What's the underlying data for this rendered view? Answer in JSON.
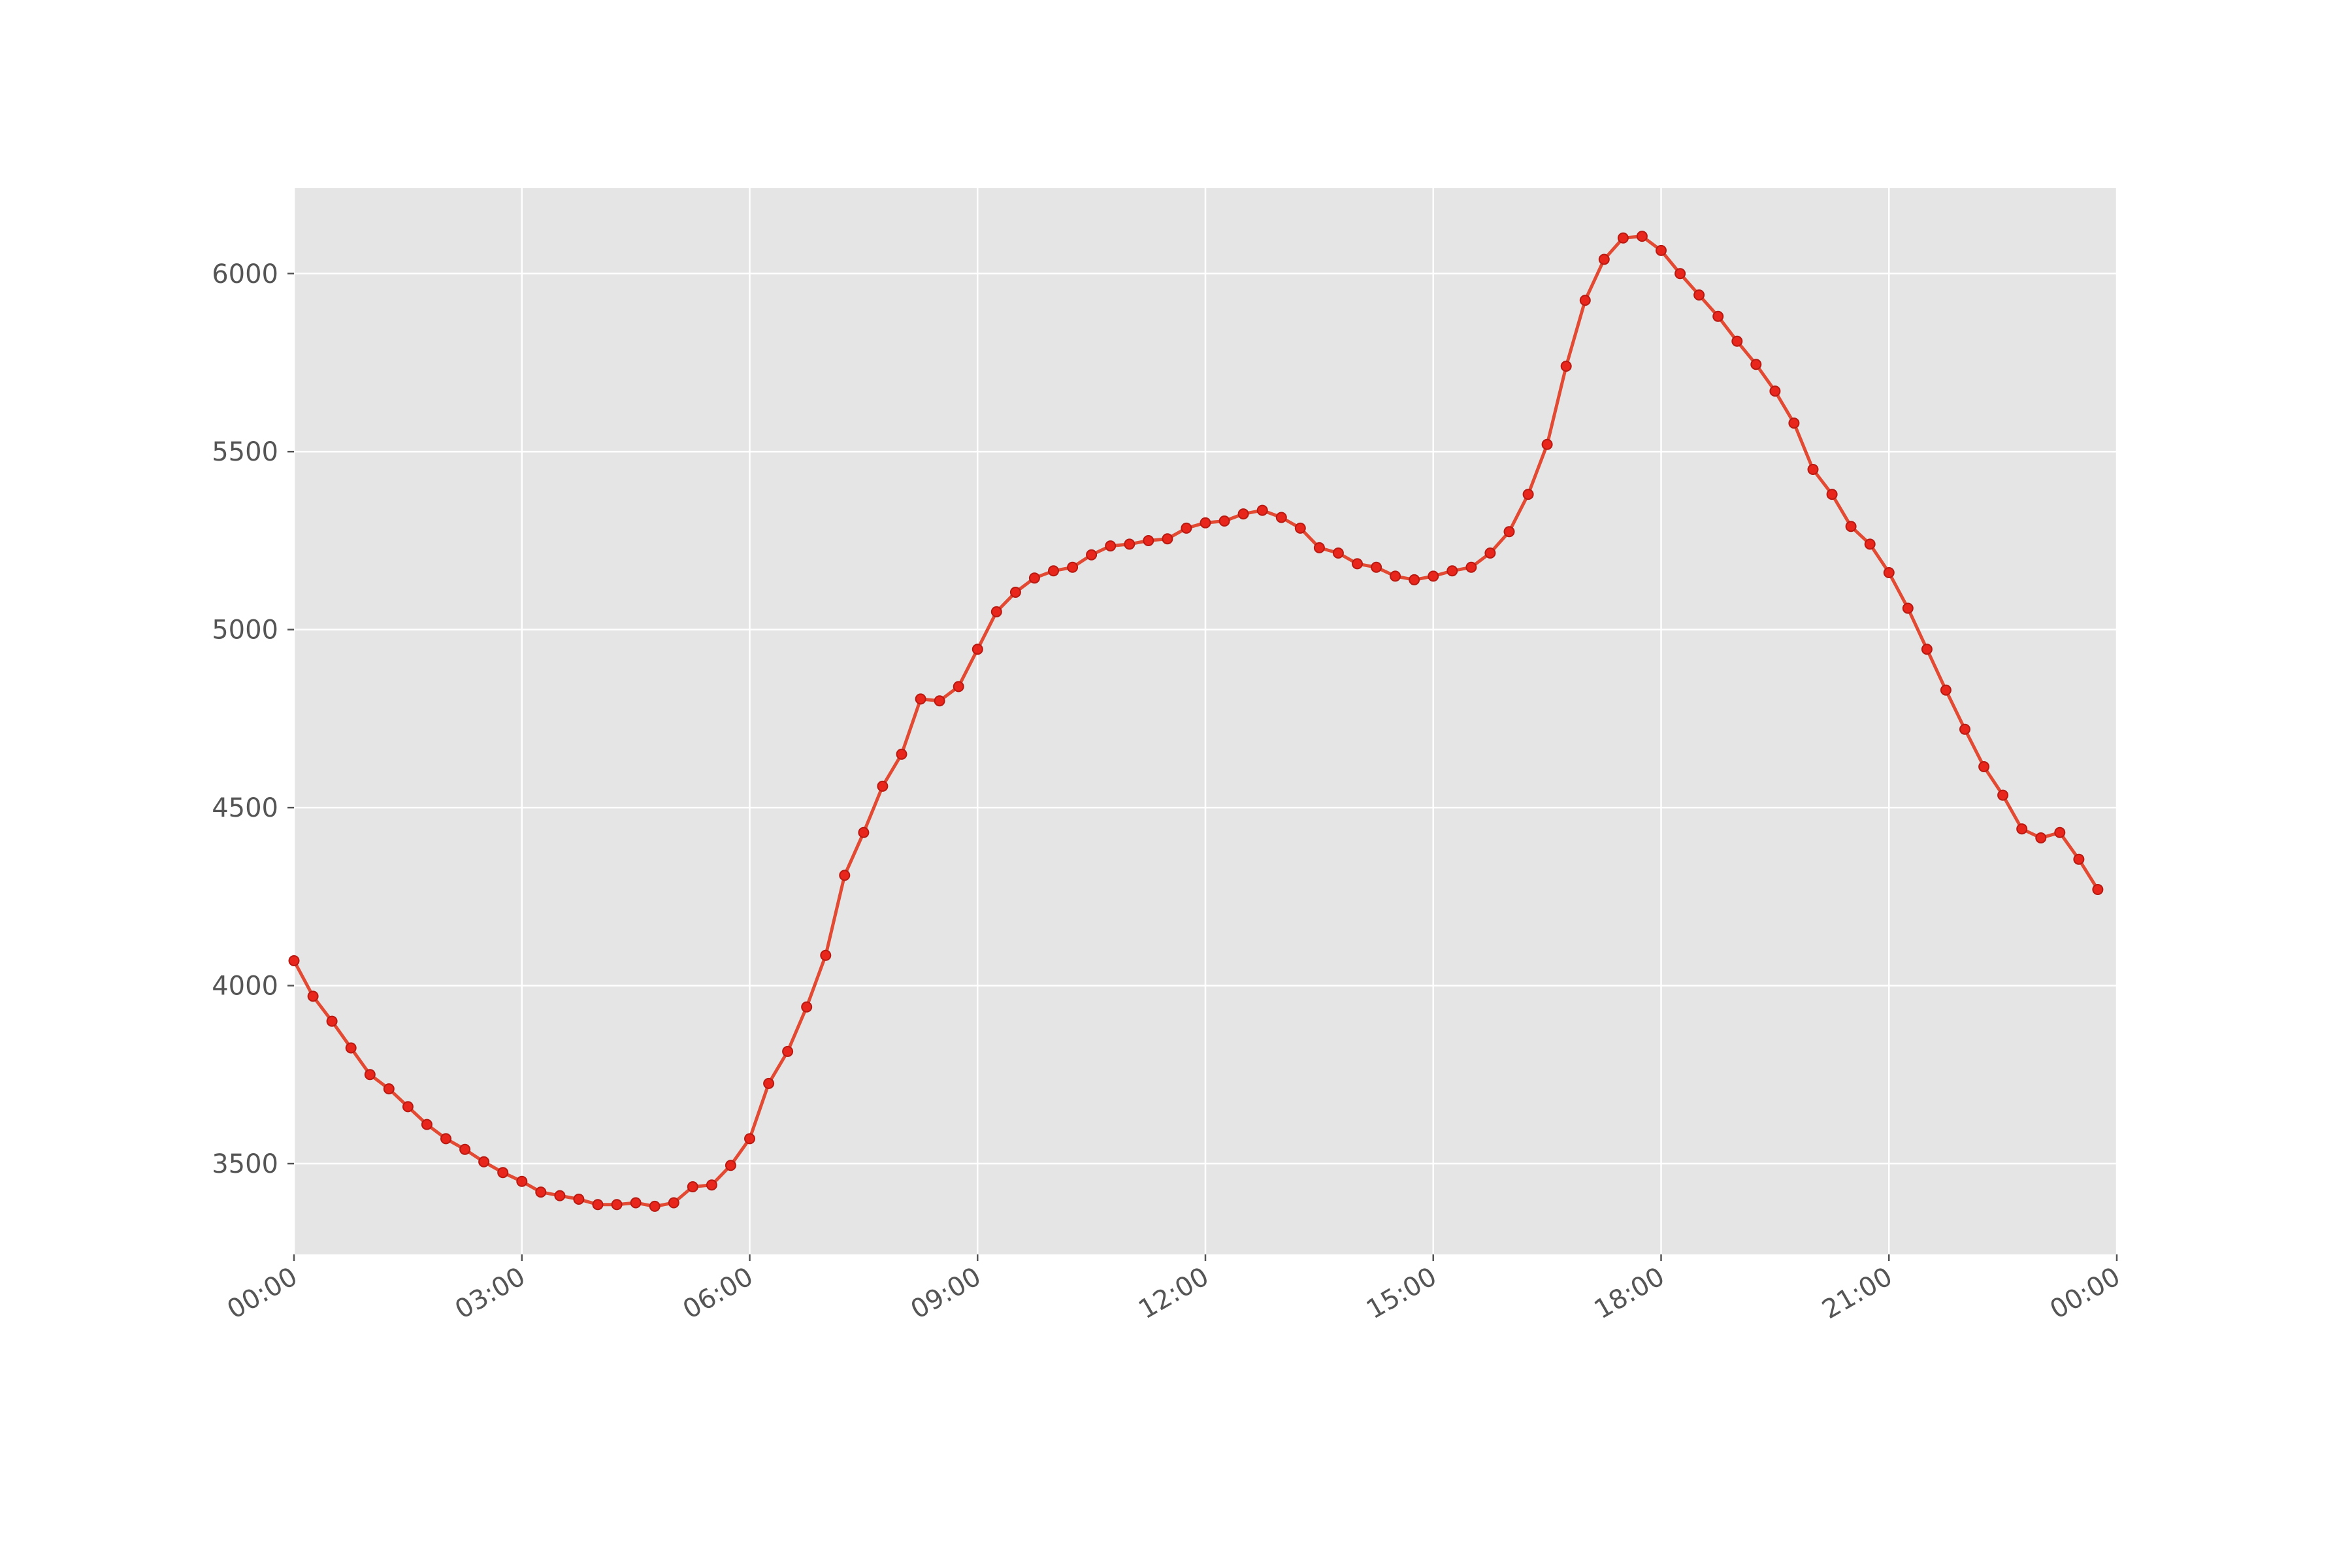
{
  "chart_data": {
    "type": "line",
    "title": "",
    "xlabel": "",
    "ylabel": "",
    "x": [
      "00:00",
      "00:15",
      "00:30",
      "00:45",
      "01:00",
      "01:15",
      "01:30",
      "01:45",
      "02:00",
      "02:15",
      "02:30",
      "02:45",
      "03:00",
      "03:15",
      "03:30",
      "03:45",
      "04:00",
      "04:15",
      "04:30",
      "04:45",
      "05:00",
      "05:15",
      "05:30",
      "05:45",
      "06:00",
      "06:15",
      "06:30",
      "06:45",
      "07:00",
      "07:15",
      "07:30",
      "07:45",
      "08:00",
      "08:15",
      "08:30",
      "08:45",
      "09:00",
      "09:15",
      "09:30",
      "09:45",
      "10:00",
      "10:15",
      "10:30",
      "10:45",
      "11:00",
      "11:15",
      "11:30",
      "11:45",
      "12:00",
      "12:15",
      "12:30",
      "12:45",
      "13:00",
      "13:15",
      "13:30",
      "13:45",
      "14:00",
      "14:15",
      "14:30",
      "14:45",
      "15:00",
      "15:15",
      "15:30",
      "15:45",
      "16:00",
      "16:15",
      "16:30",
      "16:45",
      "17:00",
      "17:15",
      "17:30",
      "17:45",
      "18:00",
      "18:15",
      "18:30",
      "18:45",
      "19:00",
      "19:15",
      "19:30",
      "19:45",
      "20:00",
      "20:15",
      "20:30",
      "20:45",
      "21:00",
      "21:15",
      "21:30",
      "21:45",
      "22:00",
      "22:15",
      "22:30",
      "22:45",
      "23:00",
      "23:15",
      "23:30",
      "23:45"
    ],
    "series": [
      {
        "values": [
          4070,
          3970,
          3900,
          3825,
          3750,
          3710,
          3660,
          3610,
          3570,
          3540,
          3505,
          3475,
          3450,
          3420,
          3410,
          3400,
          3385,
          3385,
          3390,
          3380,
          3390,
          3435,
          3440,
          3495,
          3570,
          3725,
          3815,
          3940,
          4085,
          4310,
          4430,
          4560,
          4650,
          4805,
          4800,
          4840,
          4945,
          5050,
          5105,
          5145,
          5165,
          5175,
          5210,
          5235,
          5240,
          5250,
          5255,
          5285,
          5300,
          5305,
          5325,
          5335,
          5315,
          5285,
          5230,
          5215,
          5185,
          5175,
          5150,
          5140,
          5150,
          5165,
          5175,
          5215,
          5275,
          5380,
          5520,
          5740,
          5925,
          6040,
          6100,
          6105,
          6065,
          6000,
          5940,
          5880,
          5810,
          5745,
          5670,
          5580,
          5450,
          5380,
          5290,
          5240,
          5160,
          5060,
          4945,
          4830,
          4720,
          4615,
          4535,
          4440,
          4415,
          4430,
          4355,
          4270
        ]
      }
    ],
    "xlim": [
      "00:00",
      "00:00"
    ],
    "ylim": [
      3245,
      6240
    ],
    "x_tick_labels": [
      "00:00",
      "03:00",
      "06:00",
      "09:00",
      "12:00",
      "15:00",
      "18:00",
      "21:00",
      "00:00"
    ],
    "y_ticks": [
      3500,
      4000,
      4500,
      5000,
      5500,
      6000
    ],
    "grid": true,
    "style": {
      "plot_background": "#e5e5e5",
      "grid_color": "#ffffff",
      "line_color": "#e24a33",
      "marker_color": "#e8261c",
      "marker_edge": "#b81a12",
      "text_color": "#555555"
    }
  }
}
